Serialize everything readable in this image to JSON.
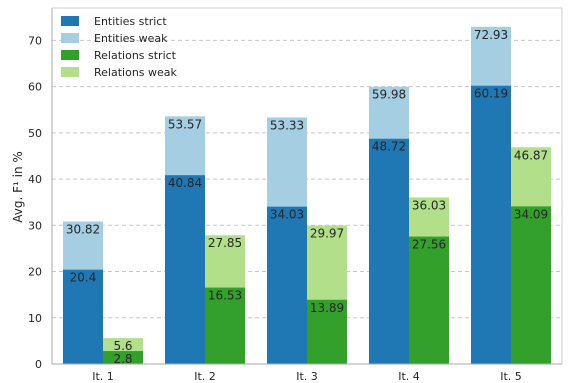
{
  "chart_data": {
    "type": "bar",
    "title": "",
    "xlabel": "",
    "ylabel": "Avg. F¹ in %",
    "ylim": [
      0,
      77
    ],
    "yticks": [
      0,
      10,
      20,
      30,
      40,
      50,
      60,
      70
    ],
    "grid": "horizontal-dashed",
    "legend_position": "top-left",
    "categories": [
      "It. 1",
      "It. 2",
      "It. 3",
      "It. 4",
      "It. 5"
    ],
    "groups": [
      {
        "name": "Entities",
        "series": [
          {
            "name": "Entities strict",
            "color": "#1f77b4",
            "values": [
              20.4,
              40.84,
              34.03,
              48.72,
              60.19
            ]
          },
          {
            "name": "Entities weak",
            "color": "#a6cee3",
            "values": [
              30.82,
              53.57,
              53.33,
              59.98,
              72.93
            ]
          }
        ]
      },
      {
        "name": "Relations",
        "series": [
          {
            "name": "Relations strict",
            "color": "#33a02c",
            "values": [
              2.8,
              16.53,
              13.89,
              27.56,
              34.09
            ]
          },
          {
            "name": "Relations weak",
            "color": "#b2df8a",
            "values": [
              5.6,
              27.85,
              29.97,
              36.03,
              46.87
            ]
          }
        ]
      }
    ],
    "legend": [
      {
        "label": "Entities strict",
        "color": "#1f77b4"
      },
      {
        "label": "Entities weak",
        "color": "#a6cee3"
      },
      {
        "label": "Relations strict",
        "color": "#33a02c"
      },
      {
        "label": "Relations weak",
        "color": "#b2df8a"
      }
    ]
  }
}
